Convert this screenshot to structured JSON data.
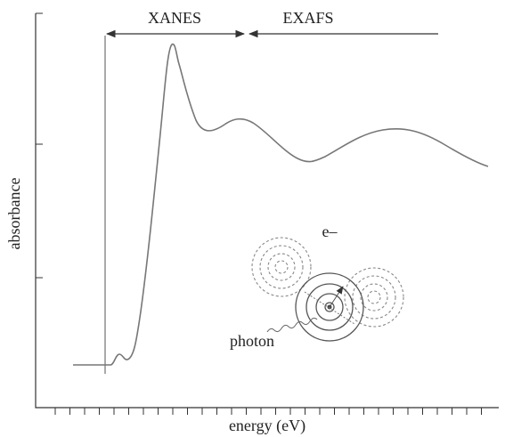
{
  "labels": {
    "xanes": "XANES",
    "exafs": "EXAFS",
    "y_axis": "absorbance",
    "x_axis": "energy (eV)",
    "electron": "e–",
    "photon": "photon"
  }
}
